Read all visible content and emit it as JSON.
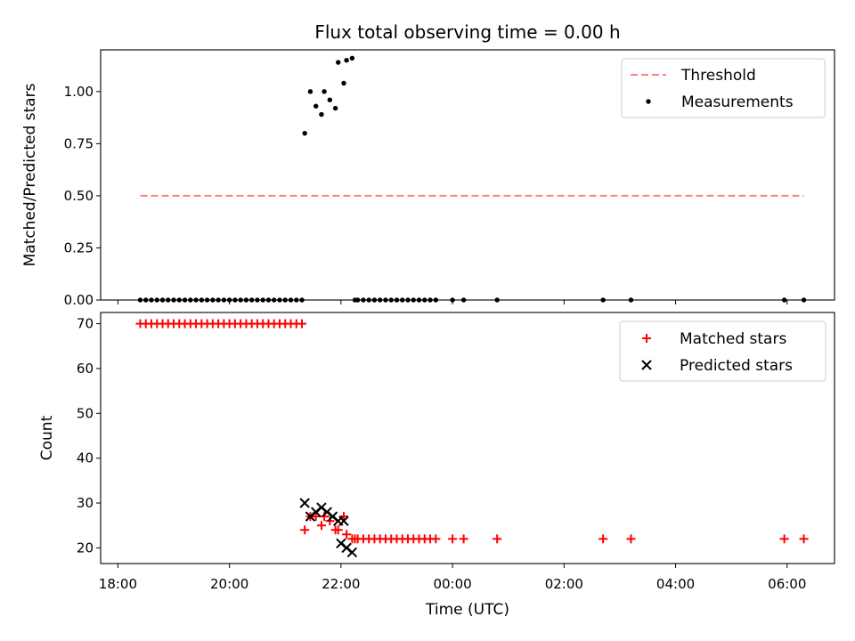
{
  "figure": {
    "title": "Flux total observing time = 0.00 h"
  },
  "chart_data": [
    {
      "type": "scatter",
      "title": "Flux total observing time = 0.00 h",
      "xlabel": "",
      "ylabel": "Matched/Predicted stars",
      "xlim_hours": [
        17.69,
        30.85
      ],
      "ylim": [
        0,
        1.2
      ],
      "yticks": [
        0.0,
        0.25,
        0.5,
        0.75,
        1.0
      ],
      "ytick_labels": [
        "0.00",
        "0.25",
        "0.50",
        "0.75",
        "1.00"
      ],
      "legend_position": "upper right",
      "threshold": {
        "name": "Threshold",
        "color": "#ff7f7f",
        "value": 0.5,
        "x_range_hours": [
          18.4,
          30.3
        ]
      },
      "series": [
        {
          "name": "Measurements",
          "color": "#000000",
          "x_hours": [
            18.4,
            18.5,
            18.6,
            18.7,
            18.8,
            18.9,
            19.0,
            19.1,
            19.2,
            19.3,
            19.4,
            19.5,
            19.6,
            19.7,
            19.8,
            19.9,
            20.0,
            20.1,
            20.2,
            20.3,
            20.4,
            20.5,
            20.6,
            20.7,
            20.8,
            20.9,
            21.0,
            21.1,
            21.2,
            21.3,
            21.35,
            21.45,
            21.55,
            21.65,
            21.7,
            21.8,
            21.9,
            21.95,
            22.05,
            22.1,
            22.2,
            22.25,
            22.3,
            22.4,
            22.5,
            22.6,
            22.7,
            22.8,
            22.9,
            23.0,
            23.1,
            23.2,
            23.3,
            23.4,
            23.5,
            23.6,
            23.7,
            24.0,
            24.2,
            24.8,
            26.7,
            27.2,
            29.95,
            30.3
          ],
          "y": [
            0,
            0,
            0,
            0,
            0,
            0,
            0,
            0,
            0,
            0,
            0,
            0,
            0,
            0,
            0,
            0,
            0,
            0,
            0,
            0,
            0,
            0,
            0,
            0,
            0,
            0,
            0,
            0,
            0,
            0,
            0.8,
            1.0,
            0.93,
            0.89,
            1.0,
            0.96,
            0.92,
            1.14,
            1.04,
            1.15,
            1.16,
            0,
            0,
            0,
            0,
            0,
            0,
            0,
            0,
            0,
            0,
            0,
            0,
            0,
            0,
            0,
            0,
            0,
            0,
            0,
            0,
            0,
            0,
            0
          ]
        }
      ]
    },
    {
      "type": "scatter",
      "title": "",
      "xlabel": "Time (UTC)",
      "ylabel": "Count",
      "xlim_hours": [
        17.69,
        30.85
      ],
      "ylim": [
        16.5,
        72.5
      ],
      "yticks": [
        20,
        30,
        40,
        50,
        60,
        70
      ],
      "ytick_labels": [
        "20",
        "30",
        "40",
        "50",
        "60",
        "70"
      ],
      "xticks_hours": [
        18,
        20,
        22,
        24,
        26,
        28,
        30
      ],
      "xtick_labels": [
        "18:00",
        "20:00",
        "22:00",
        "00:00",
        "02:00",
        "04:00",
        "06:00"
      ],
      "legend_position": "upper right",
      "series": [
        {
          "name": "Matched stars",
          "color": "#ff0000",
          "x_hours": [
            18.4,
            18.5,
            18.6,
            18.7,
            18.8,
            18.9,
            19.0,
            19.1,
            19.2,
            19.3,
            19.4,
            19.5,
            19.6,
            19.7,
            19.8,
            19.9,
            20.0,
            20.1,
            20.2,
            20.3,
            20.4,
            20.5,
            20.6,
            20.7,
            20.8,
            20.9,
            21.0,
            21.1,
            21.2,
            21.3,
            21.35,
            21.45,
            21.55,
            21.65,
            21.7,
            21.8,
            21.9,
            21.95,
            22.05,
            22.1,
            22.2,
            22.25,
            22.3,
            22.4,
            22.5,
            22.6,
            22.7,
            22.8,
            22.9,
            23.0,
            23.1,
            23.2,
            23.3,
            23.4,
            23.5,
            23.6,
            23.7,
            24.0,
            24.2,
            24.8,
            26.7,
            27.2,
            29.95,
            30.3
          ],
          "y": [
            70,
            70,
            70,
            70,
            70,
            70,
            70,
            70,
            70,
            70,
            70,
            70,
            70,
            70,
            70,
            70,
            70,
            70,
            70,
            70,
            70,
            70,
            70,
            70,
            70,
            70,
            70,
            70,
            70,
            70,
            24,
            27,
            27,
            25,
            27,
            26,
            24,
            24,
            27,
            23,
            22,
            22,
            22,
            22,
            22,
            22,
            22,
            22,
            22,
            22,
            22,
            22,
            22,
            22,
            22,
            22,
            22,
            22,
            22,
            22,
            22,
            22,
            22,
            22
          ]
        },
        {
          "name": "Predicted stars",
          "color": "#000000",
          "x_hours": [
            21.35,
            21.45,
            21.55,
            21.65,
            21.75,
            21.85,
            21.95,
            22.0,
            22.05,
            22.1,
            22.2
          ],
          "y": [
            30,
            27,
            28,
            29,
            28,
            27,
            26,
            21,
            26,
            20,
            19
          ]
        }
      ]
    }
  ]
}
